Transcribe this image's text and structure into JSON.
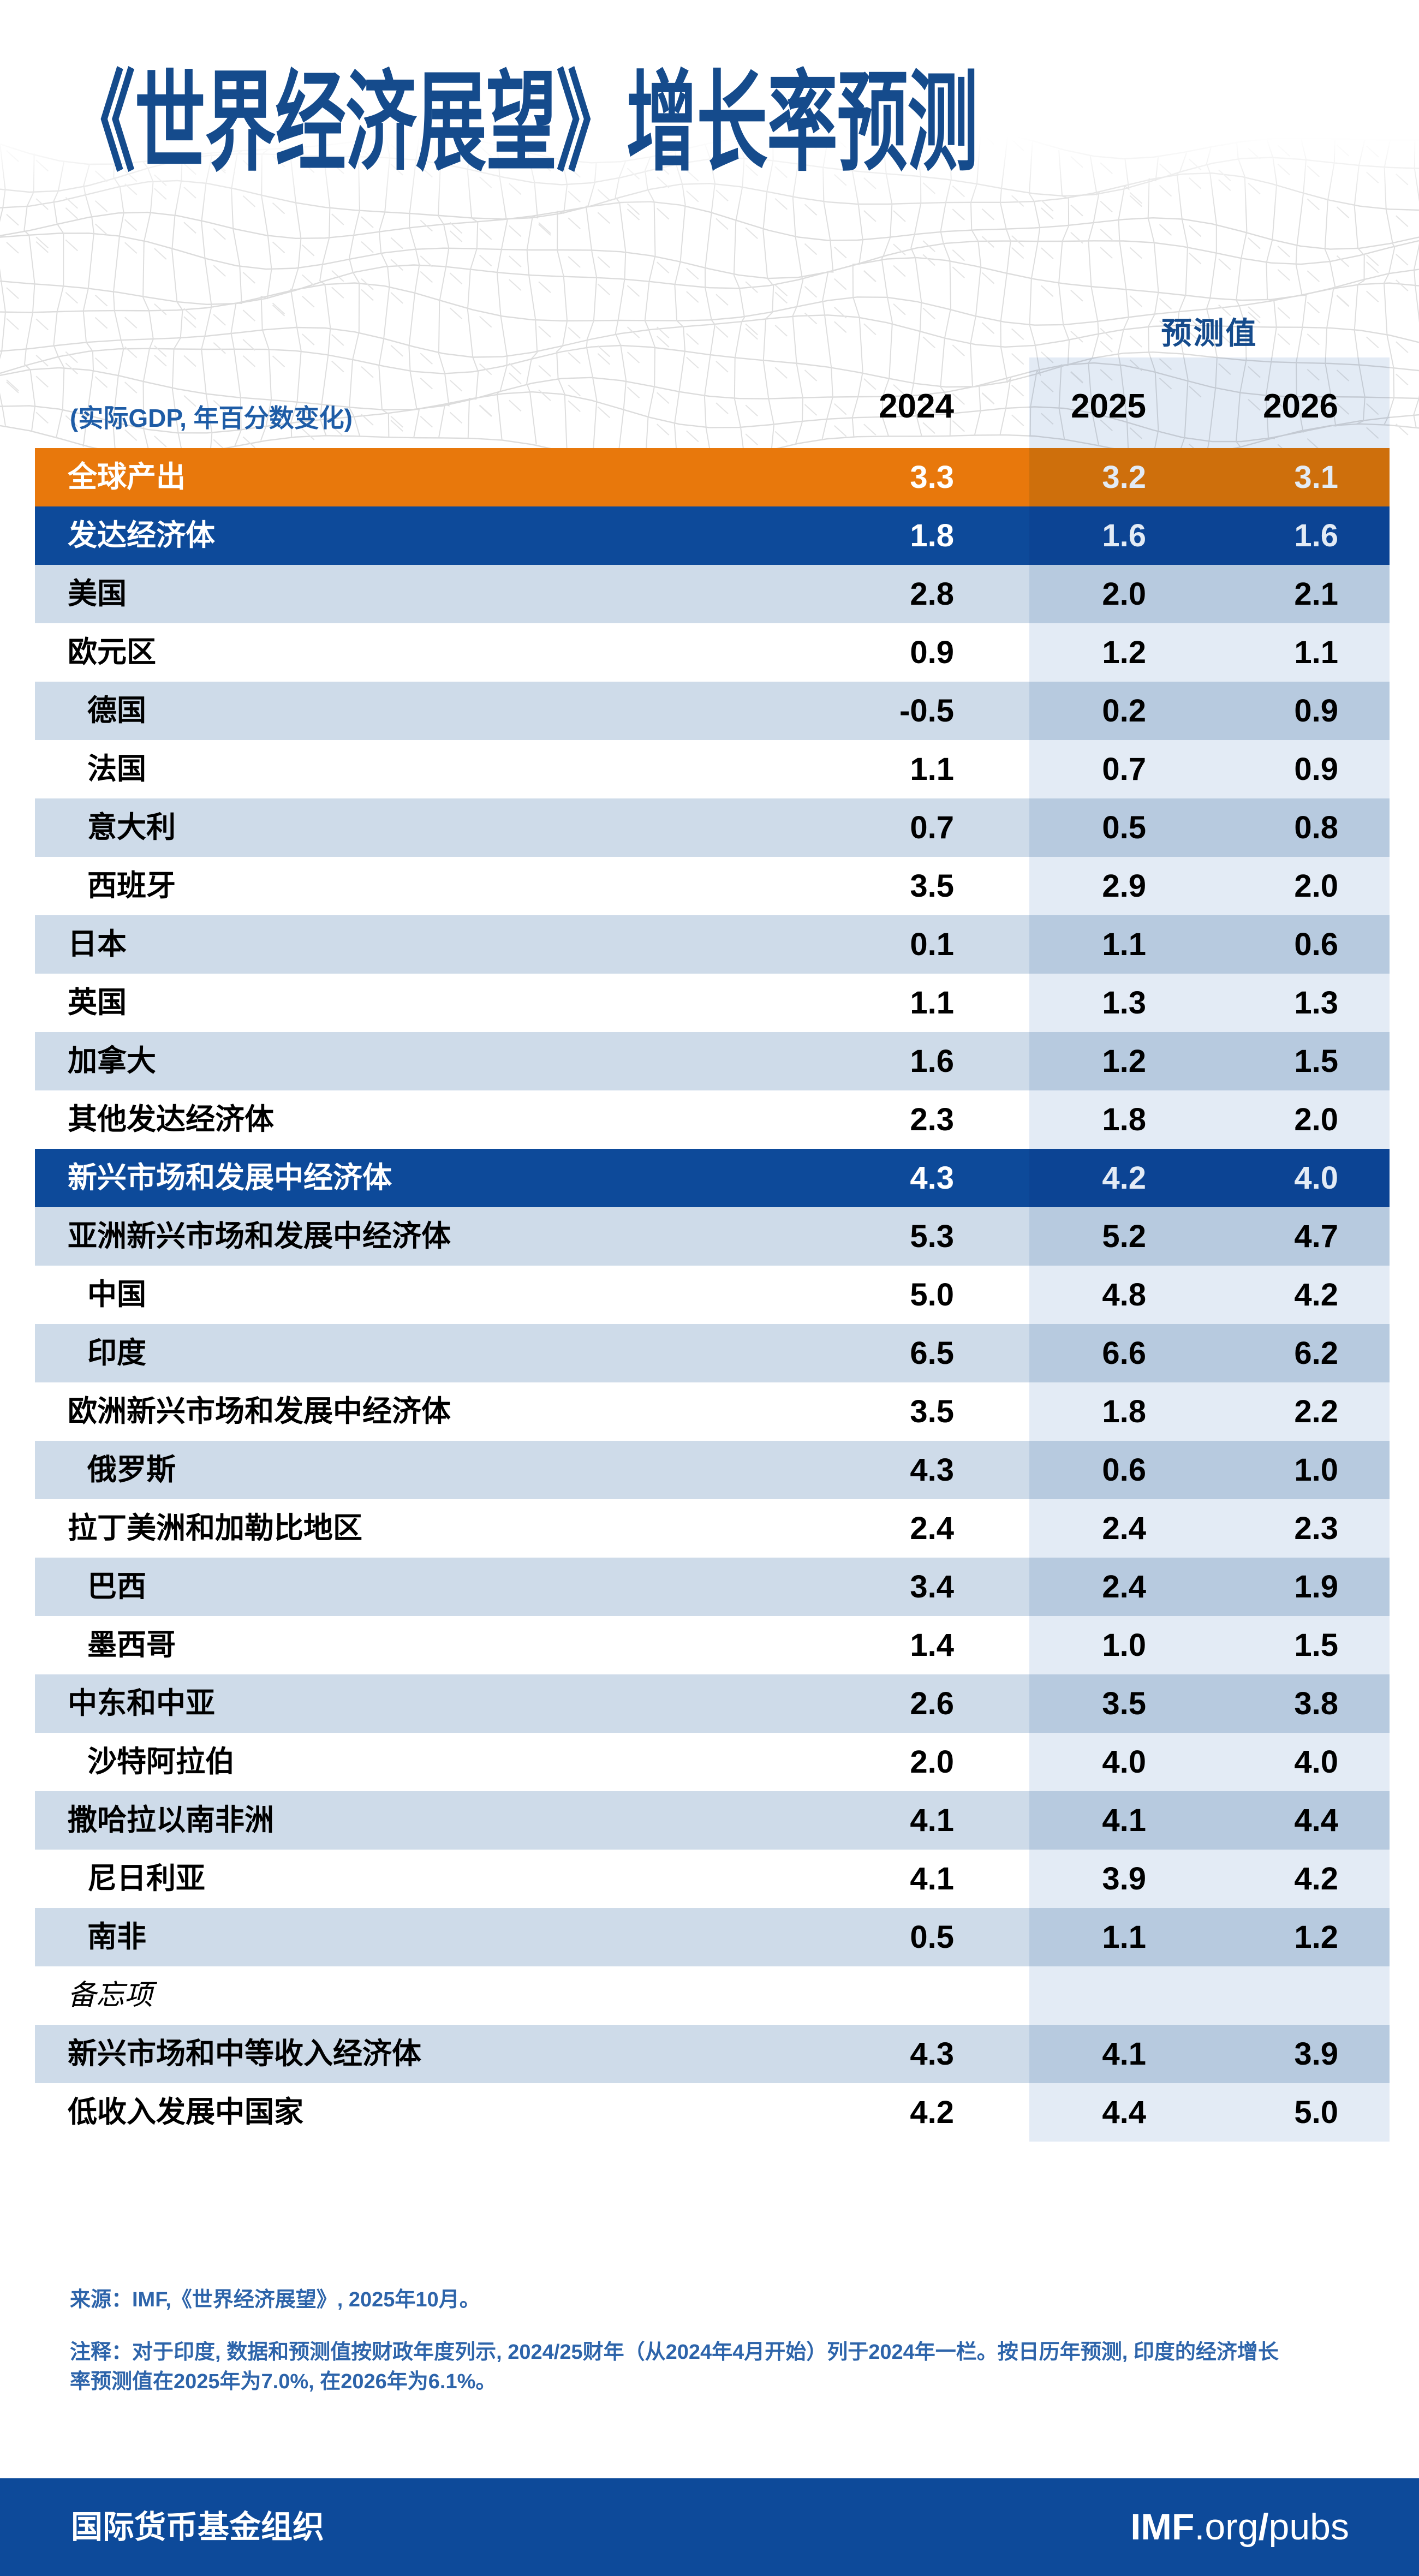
{
  "title": "《世界经济展望》增长率预测",
  "subtitle": "(实际GDP, 年百分数变化)",
  "header": {
    "forecast_label": "预测值",
    "years": [
      "2024",
      "2025",
      "2026"
    ]
  },
  "colors": {
    "orange": "#E8780C",
    "dark_blue": "#0D4A9A",
    "light_blue": "#CEDBE9",
    "forecast_overlay": "#E3EBF5",
    "title_blue": "#154B8C",
    "subtitle_blue": "#1E5CA6",
    "footer_blue": "#2D64AA"
  },
  "table": {
    "rows": [
      {
        "label": "全球产出",
        "values": [
          "3.3",
          "3.2",
          "3.1"
        ],
        "style": "orange",
        "indent": false
      },
      {
        "label": "发达经济体",
        "values": [
          "1.8",
          "1.6",
          "1.6"
        ],
        "style": "blue",
        "indent": false
      },
      {
        "label": "美国",
        "values": [
          "2.8",
          "2.0",
          "2.1"
        ],
        "style": "light",
        "indent": false
      },
      {
        "label": "欧元区",
        "values": [
          "0.9",
          "1.2",
          "1.1"
        ],
        "style": "white",
        "indent": false
      },
      {
        "label": "德国",
        "values": [
          "-0.5",
          "0.2",
          "0.9"
        ],
        "style": "light",
        "indent": true
      },
      {
        "label": "法国",
        "values": [
          "1.1",
          "0.7",
          "0.9"
        ],
        "style": "white",
        "indent": true
      },
      {
        "label": "意大利",
        "values": [
          "0.7",
          "0.5",
          "0.8"
        ],
        "style": "light",
        "indent": true
      },
      {
        "label": "西班牙",
        "values": [
          "3.5",
          "2.9",
          "2.0"
        ],
        "style": "white",
        "indent": true
      },
      {
        "label": "日本",
        "values": [
          "0.1",
          "1.1",
          "0.6"
        ],
        "style": "light",
        "indent": false
      },
      {
        "label": "英国",
        "values": [
          "1.1",
          "1.3",
          "1.3"
        ],
        "style": "white",
        "indent": false
      },
      {
        "label": "加拿大",
        "values": [
          "1.6",
          "1.2",
          "1.5"
        ],
        "style": "light",
        "indent": false
      },
      {
        "label": "其他发达经济体",
        "values": [
          "2.3",
          "1.8",
          "2.0"
        ],
        "style": "white",
        "indent": false
      },
      {
        "label": "新兴市场和发展中经济体",
        "values": [
          "4.3",
          "4.2",
          "4.0"
        ],
        "style": "blue",
        "indent": false
      },
      {
        "label": "亚洲新兴市场和发展中经济体",
        "values": [
          "5.3",
          "5.2",
          "4.7"
        ],
        "style": "light",
        "indent": false
      },
      {
        "label": "中国",
        "values": [
          "5.0",
          "4.8",
          "4.2"
        ],
        "style": "white",
        "indent": true
      },
      {
        "label": "印度",
        "values": [
          "6.5",
          "6.6",
          "6.2"
        ],
        "style": "light",
        "indent": true
      },
      {
        "label": "欧洲新兴市场和发展中经济体",
        "values": [
          "3.5",
          "1.8",
          "2.2"
        ],
        "style": "white",
        "indent": false
      },
      {
        "label": "俄罗斯",
        "values": [
          "4.3",
          "0.6",
          "1.0"
        ],
        "style": "light",
        "indent": true
      },
      {
        "label": "拉丁美洲和加勒比地区",
        "values": [
          "2.4",
          "2.4",
          "2.3"
        ],
        "style": "white",
        "indent": false
      },
      {
        "label": "巴西",
        "values": [
          "3.4",
          "2.4",
          "1.9"
        ],
        "style": "light",
        "indent": true
      },
      {
        "label": "墨西哥",
        "values": [
          "1.4",
          "1.0",
          "1.5"
        ],
        "style": "white",
        "indent": true
      },
      {
        "label": "中东和中亚",
        "values": [
          "2.6",
          "3.5",
          "3.8"
        ],
        "style": "light",
        "indent": false
      },
      {
        "label": "沙特阿拉伯",
        "values": [
          "2.0",
          "4.0",
          "4.0"
        ],
        "style": "white",
        "indent": true
      },
      {
        "label": "撒哈拉以南非洲",
        "values": [
          "4.1",
          "4.1",
          "4.4"
        ],
        "style": "light",
        "indent": false
      },
      {
        "label": "尼日利亚",
        "values": [
          "4.1",
          "3.9",
          "4.2"
        ],
        "style": "white",
        "indent": true
      },
      {
        "label": "南非",
        "values": [
          "0.5",
          "1.1",
          "1.2"
        ],
        "style": "light",
        "indent": true
      },
      {
        "label": "备忘项",
        "values": [
          "",
          "",
          ""
        ],
        "style": "memo",
        "indent": false
      },
      {
        "label": "新兴市场和中等收入经济体",
        "values": [
          "4.3",
          "4.1",
          "3.9"
        ],
        "style": "light",
        "indent": false
      },
      {
        "label": "低收入发展中国家",
        "values": [
          "4.2",
          "4.4",
          "5.0"
        ],
        "style": "white",
        "indent": false
      }
    ]
  },
  "footer": {
    "source": "来源：IMF,《世界经济展望》, 2025年10月。",
    "note": "注释：对于印度, 数据和预测值按财政年度列示, 2024/25财年（从2024年4月开始）列于2024年一栏。按日历年预测, 印度的经济增长率预测值在2025年为7.0%, 在2026年为6.1%。"
  },
  "bottom_bar": {
    "org": "国际货币基金组织",
    "brand_bold": "IMF",
    "brand_domain": ".org",
    "brand_slash": "/",
    "brand_suffix": "pubs"
  }
}
